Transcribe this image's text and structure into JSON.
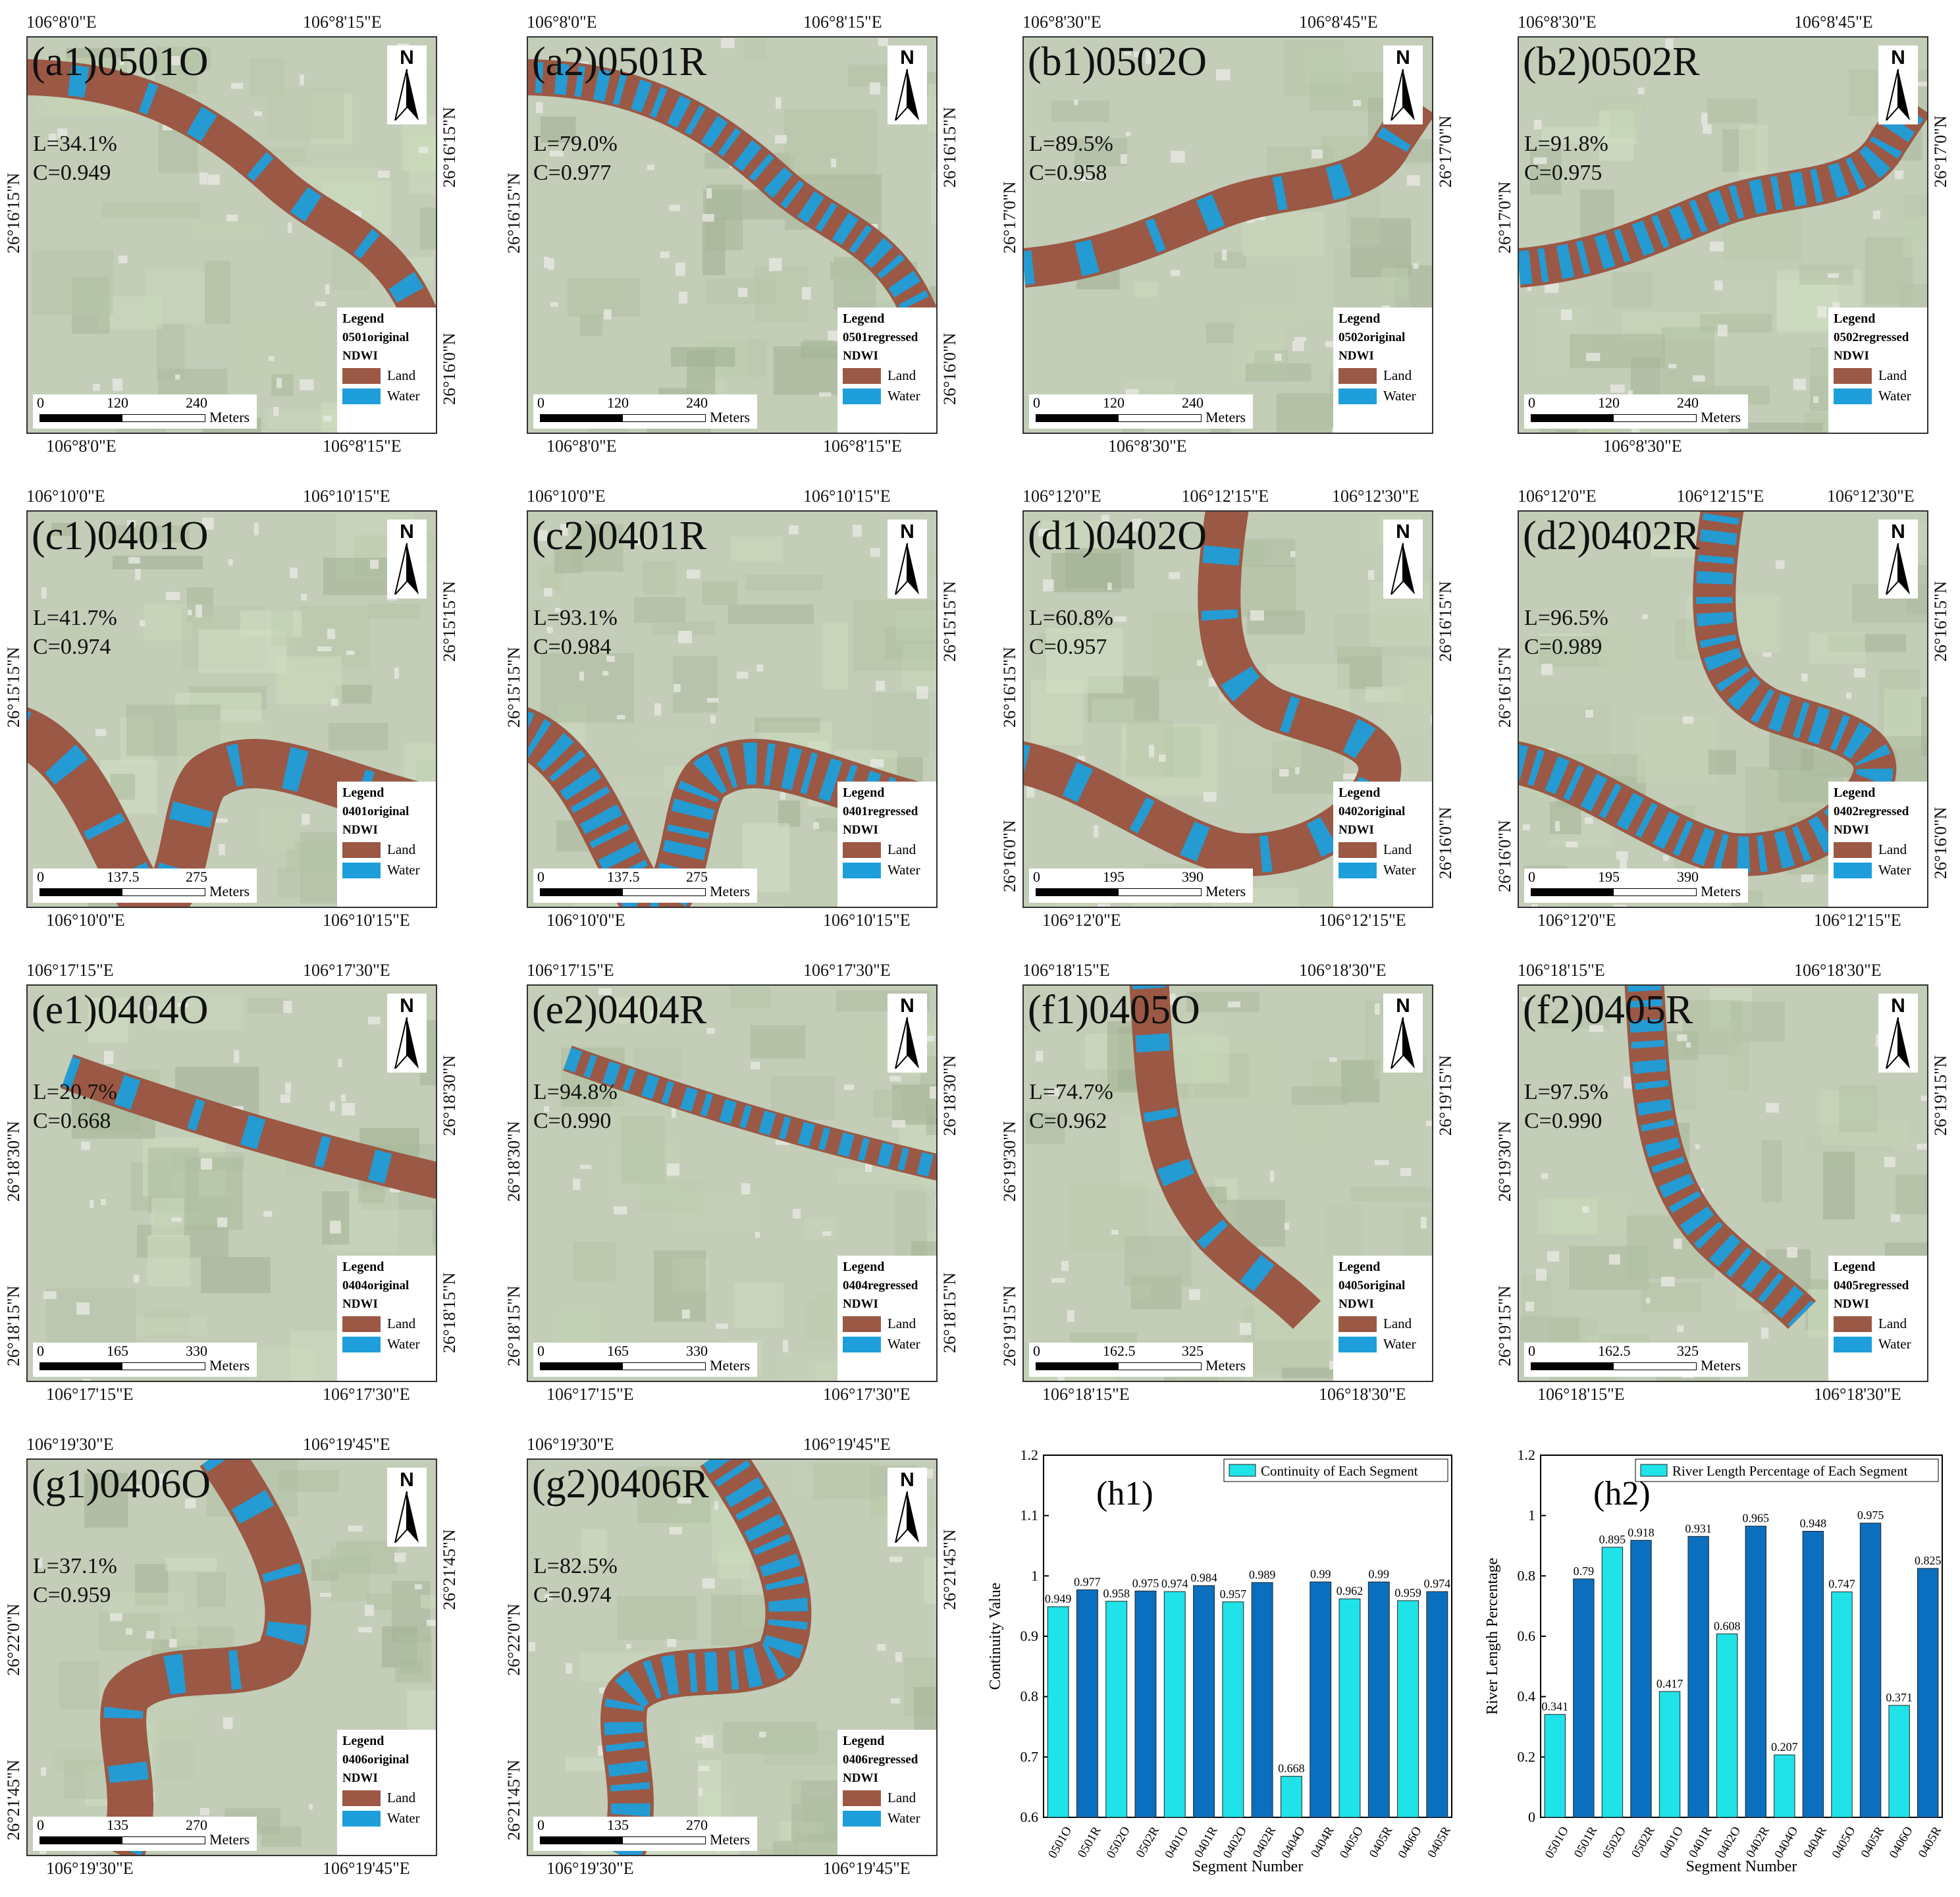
{
  "colors": {
    "land": "#9b5844",
    "water": "#1e9fdb",
    "bg": "#c3cdb8",
    "bar_o": "#1fe3e8",
    "bar_r": "#0b6fbf"
  },
  "legend": {
    "title": "Legend",
    "ndwi": "NDWI",
    "land": "Land",
    "water": "Water",
    "units": "Meters"
  },
  "north": "N",
  "panels": [
    {
      "id": "a1",
      "title": "(a1)0501O",
      "L": "L=34.1%",
      "C": "C=0.949",
      "layer": "0501original",
      "scale": [
        "0",
        "120",
        "240"
      ],
      "top_lon": [
        "106°8'0\"E",
        "106°8'15\"E"
      ],
      "bot_lon": [
        "106°8'0\"E",
        "106°8'15\"E"
      ],
      "right_lat": [
        "26°16'15\"N",
        "26°16'0\"N"
      ],
      "left_lat": [
        "26°16'15\"N"
      ]
    },
    {
      "id": "a2",
      "title": "(a2)0501R",
      "L": "L=79.0%",
      "C": "C=0.977",
      "layer": "0501regressed",
      "scale": [
        "0",
        "120",
        "240"
      ],
      "top_lon": [
        "106°8'0\"E",
        "106°8'15\"E"
      ],
      "bot_lon": [
        "106°8'0\"E",
        "106°8'15\"E"
      ],
      "right_lat": [
        "26°16'15\"N",
        "26°16'0\"N"
      ],
      "left_lat": [
        "26°16'15\"N"
      ]
    },
    {
      "id": "b1",
      "title": "(b1)0502O",
      "L": "L=89.5%",
      "C": "C=0.958",
      "layer": "0502original",
      "scale": [
        "0",
        "120",
        "240"
      ],
      "top_lon": [
        "106°8'30\"E",
        "106°8'45\"E"
      ],
      "bot_lon": [
        "106°8'30\"E"
      ],
      "right_lat": [
        "26°17'0\"N"
      ],
      "left_lat": [
        "26°17'0\"N"
      ]
    },
    {
      "id": "b2",
      "title": "(b2)0502R",
      "L": "L=91.8%",
      "C": "C=0.975",
      "layer": "0502regressed",
      "scale": [
        "0",
        "120",
        "240"
      ],
      "top_lon": [
        "106°8'30\"E",
        "106°8'45\"E"
      ],
      "bot_lon": [
        "106°8'30\"E"
      ],
      "right_lat": [
        "26°17'0\"N"
      ],
      "left_lat": [
        "26°17'0\"N"
      ]
    },
    {
      "id": "c1",
      "title": "(c1)0401O",
      "L": "L=41.7%",
      "C": "C=0.974",
      "layer": "0401original",
      "scale": [
        "0",
        "137.5",
        "275"
      ],
      "top_lon": [
        "106°10'0\"E",
        "106°10'15\"E"
      ],
      "bot_lon": [
        "106°10'0\"E",
        "106°10'15\"E"
      ],
      "right_lat": [
        "26°15'15\"N"
      ],
      "left_lat": [
        "26°15'15\"N"
      ]
    },
    {
      "id": "c2",
      "title": "(c2)0401R",
      "L": "L=93.1%",
      "C": "C=0.984",
      "layer": "0401regressed",
      "scale": [
        "0",
        "137.5",
        "275"
      ],
      "top_lon": [
        "106°10'0\"E",
        "106°10'15\"E"
      ],
      "bot_lon": [
        "106°10'0\"E",
        "106°10'15\"E"
      ],
      "right_lat": [
        "26°15'15\"N"
      ],
      "left_lat": [
        "26°15'15\"N"
      ]
    },
    {
      "id": "d1",
      "title": "(d1)0402O",
      "L": "L=60.8%",
      "C": "C=0.957",
      "layer": "0402original",
      "scale": [
        "0",
        "195",
        "390"
      ],
      "top_lon": [
        "106°12'0\"E",
        "106°12'15\"E",
        "106°12'30\"E"
      ],
      "bot_lon": [
        "106°12'0\"E",
        "106°12'15\"E"
      ],
      "right_lat": [
        "26°16'15\"N",
        "26°16'0\"N"
      ],
      "left_lat": [
        "26°16'15\"N",
        "26°16'0\"N"
      ]
    },
    {
      "id": "d2",
      "title": "(d2)0402R",
      "L": "L=96.5%",
      "C": "C=0.989",
      "layer": "0402regressed",
      "scale": [
        "0",
        "195",
        "390"
      ],
      "top_lon": [
        "106°12'0\"E",
        "106°12'15\"E",
        "106°12'30\"E"
      ],
      "bot_lon": [
        "106°12'0\"E",
        "106°12'15\"E"
      ],
      "right_lat": [
        "26°16'15\"N",
        "26°16'0\"N"
      ],
      "left_lat": [
        "26°16'15\"N",
        "26°16'0\"N"
      ]
    },
    {
      "id": "e1",
      "title": "(e1)0404O",
      "L": "L=20.7%",
      "C": "C=0.668",
      "layer": "0404original",
      "scale": [
        "0",
        "165",
        "330"
      ],
      "top_lon": [
        "106°17'15\"E",
        "106°17'30\"E"
      ],
      "bot_lon": [
        "106°17'15\"E",
        "106°17'30\"E"
      ],
      "right_lat": [
        "26°18'30\"N",
        "26°18'15\"N"
      ],
      "left_lat": [
        "26°18'30\"N",
        "26°18'15\"N"
      ]
    },
    {
      "id": "e2",
      "title": "(e2)0404R",
      "L": "L=94.8%",
      "C": "C=0.990",
      "layer": "0404regressed",
      "scale": [
        "0",
        "165",
        "330"
      ],
      "top_lon": [
        "106°17'15\"E",
        "106°17'30\"E"
      ],
      "bot_lon": [
        "106°17'15\"E",
        "106°17'30\"E"
      ],
      "right_lat": [
        "26°18'30\"N",
        "26°18'15\"N"
      ],
      "left_lat": [
        "26°18'30\"N",
        "26°18'15\"N"
      ]
    },
    {
      "id": "f1",
      "title": "(f1)0405O",
      "L": "L=74.7%",
      "C": "C=0.962",
      "layer": "0405original",
      "scale": [
        "0",
        "162.5",
        "325"
      ],
      "top_lon": [
        "106°18'15\"E",
        "106°18'30\"E"
      ],
      "bot_lon": [
        "106°18'15\"E",
        "106°18'30\"E"
      ],
      "right_lat": [
        "26°19'15\"N"
      ],
      "left_lat": [
        "26°19'30\"N",
        "26°19'15\"N"
      ]
    },
    {
      "id": "f2",
      "title": "(f2)0405R",
      "L": "L=97.5%",
      "C": "C=0.990",
      "layer": "0405regressed",
      "scale": [
        "0",
        "162.5",
        "325"
      ],
      "top_lon": [
        "106°18'15\"E",
        "106°18'30\"E"
      ],
      "bot_lon": [
        "106°18'15\"E",
        "106°18'30\"E"
      ],
      "right_lat": [
        "26°19'15\"N"
      ],
      "left_lat": [
        "26°19'30\"N",
        "26°19'15\"N"
      ]
    },
    {
      "id": "g1",
      "title": "(g1)0406O",
      "L": "L=37.1%",
      "C": "C=0.959",
      "layer": "0406original",
      "scale": [
        "0",
        "135",
        "270"
      ],
      "top_lon": [
        "106°19'30\"E",
        "106°19'45\"E"
      ],
      "bot_lon": [
        "106°19'30\"E",
        "106°19'45\"E"
      ],
      "right_lat": [
        "26°21'45\"N"
      ],
      "left_lat": [
        "26°22'0\"N",
        "26°21'45\"N"
      ]
    },
    {
      "id": "g2",
      "title": "(g2)0406R",
      "L": "L=82.5%",
      "C": "C=0.974",
      "layer": "0406regressed",
      "scale": [
        "0",
        "135",
        "270"
      ],
      "top_lon": [
        "106°19'30\"E",
        "106°19'45\"E"
      ],
      "bot_lon": [
        "106°19'30\"E",
        "106°19'45\"E"
      ],
      "right_lat": [
        "26°21'45\"N"
      ],
      "left_lat": [
        "26°22'0\"N",
        "26°21'45\"N"
      ]
    }
  ],
  "chart_data": [
    {
      "type": "bar",
      "panel_label": "(h1)",
      "legend": "Continuity of Each Segment",
      "legend_position": "top-right",
      "xlabel": "Segment Number",
      "ylabel": "Continuity Value",
      "ylim": [
        0.6,
        1.2
      ],
      "yticks": [
        "0.6",
        "0.7",
        "0.8",
        "0.9",
        "1",
        "1.1",
        "1.2"
      ],
      "categories": [
        "0501O",
        "0501R",
        "0502O",
        "0502R",
        "0401O",
        "0401R",
        "0402O",
        "0402R",
        "0404O",
        "0404R",
        "0405O",
        "0405R",
        "0406O",
        "0405R"
      ],
      "values": [
        0.949,
        0.977,
        0.958,
        0.975,
        0.974,
        0.984,
        0.957,
        0.989,
        0.668,
        0.99,
        0.962,
        0.99,
        0.959,
        0.974
      ],
      "labels": [
        "0.949",
        "0.977",
        "0.958",
        "0.975",
        "0.974",
        "0.984",
        "0.957",
        "0.989",
        "0.668",
        "0.99",
        "0.962",
        "0.99",
        "0.959",
        "0.974"
      ]
    },
    {
      "type": "bar",
      "panel_label": "(h2)",
      "legend": "River Length Percentage of Each Segment",
      "legend_position": "top-right",
      "xlabel": "Segment Number",
      "ylabel": "River Length Percentage",
      "ylim": [
        0,
        1.2
      ],
      "yticks": [
        "0",
        "0.2",
        "0.4",
        "0.6",
        "0.8",
        "1",
        "1.2"
      ],
      "categories": [
        "0501O",
        "0501R",
        "0502O",
        "0502R",
        "0401O",
        "0401R",
        "0402O",
        "0402R",
        "0404O",
        "0404R",
        "0405O",
        "0405R",
        "0406O",
        "0405R"
      ],
      "values": [
        0.341,
        0.79,
        0.895,
        0.918,
        0.417,
        0.931,
        0.608,
        0.965,
        0.207,
        0.948,
        0.747,
        0.975,
        0.371,
        0.825
      ],
      "labels": [
        "0.341",
        "0.79",
        "0.895",
        "0.918",
        "0.417",
        "0.931",
        "0.608",
        "0.965",
        "0.207",
        "0.948",
        "0.747",
        "0.975",
        "0.371",
        "0.825"
      ]
    }
  ]
}
